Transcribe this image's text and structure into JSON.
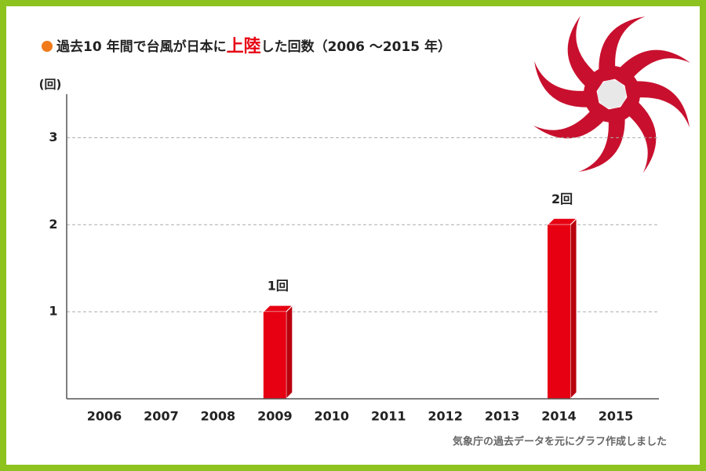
{
  "chart_data": {
    "type": "bar",
    "title_parts": [
      "過去10 年間で台風が日本に",
      "上陸",
      "した回数（2006 〜2015 年）"
    ],
    "y_axis_label": "(回)",
    "categories": [
      "2006",
      "2007",
      "2008",
      "2009",
      "2010",
      "2011",
      "2012",
      "2013",
      "2014",
      "2015"
    ],
    "values": [
      0,
      0,
      0,
      1,
      0,
      0,
      0,
      0,
      2,
      0
    ],
    "value_labels": [
      null,
      null,
      null,
      "1回",
      null,
      null,
      null,
      null,
      "2回",
      null
    ],
    "color": "#e60012",
    "ylim": [
      0,
      3.5
    ],
    "yticks": [
      1,
      2,
      3
    ],
    "grid": true,
    "source": "気象庁の過去データを元にグラフ作成しました"
  }
}
